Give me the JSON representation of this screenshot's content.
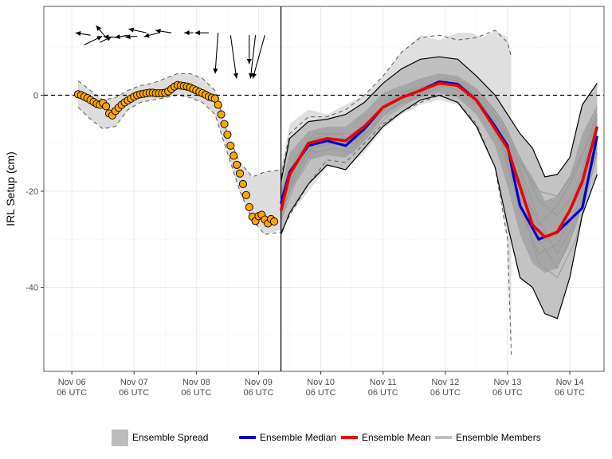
{
  "chart_data": {
    "type": "line",
    "title": "",
    "xlabel": "",
    "ylabel": "IRL Setup (cm)",
    "x_unit": "days since Nov 06 06 UTC",
    "xlim": [
      -0.45,
      8.55
    ],
    "ylim": [
      -57.5,
      18.5
    ],
    "grid": true,
    "zero_line": {
      "value": 0,
      "style": "dashed"
    },
    "forecast_start": 3.36,
    "x_ticks": [
      {
        "value": 0,
        "line1": "Nov 06",
        "line2": "06 UTC"
      },
      {
        "value": 1,
        "line1": "Nov 07",
        "line2": "06 UTC"
      },
      {
        "value": 2,
        "line1": "Nov 08",
        "line2": "06 UTC"
      },
      {
        "value": 3,
        "line1": "Nov 09",
        "line2": "06 UTC"
      },
      {
        "value": 4,
        "line1": "Nov 10",
        "line2": "06 UTC"
      },
      {
        "value": 5,
        "line1": "Nov 11",
        "line2": "06 UTC"
      },
      {
        "value": 6,
        "line1": "Nov 12",
        "line2": "06 UTC"
      },
      {
        "value": 7,
        "line1": "Nov 13",
        "line2": "06 UTC"
      },
      {
        "value": 8,
        "line1": "Nov 14",
        "line2": "06 UTC"
      }
    ],
    "y_ticks": [
      {
        "value": 0,
        "label": "0"
      },
      {
        "value": -20,
        "label": "-20"
      },
      {
        "value": -40,
        "label": "-40"
      }
    ],
    "colors": {
      "observed_fill": "#FFA500",
      "median": "#0000CC",
      "mean": "#EE0000",
      "members": "#9a9a9a",
      "spread": "#bdbdbd",
      "legend_spread": "#bdbdbd",
      "legend_members": "#bdbdbd"
    },
    "legend": {
      "position": "bottom",
      "items": [
        {
          "key": "spread",
          "label": "Ensemble Spread"
        },
        {
          "key": "median",
          "label": "Ensemble Median"
        },
        {
          "key": "mean",
          "label": "Ensemble Mean"
        },
        {
          "key": "members",
          "label": "Ensemble Members"
        }
      ]
    },
    "observed": {
      "x": [
        0.1,
        0.15,
        0.2,
        0.25,
        0.3,
        0.35,
        0.4,
        0.45,
        0.5,
        0.55,
        0.6,
        0.65,
        0.7,
        0.75,
        0.8,
        0.85,
        0.9,
        0.95,
        1.0,
        1.05,
        1.1,
        1.15,
        1.2,
        1.25,
        1.3,
        1.35,
        1.4,
        1.45,
        1.5,
        1.55,
        1.6,
        1.65,
        1.7,
        1.75,
        1.8,
        1.85,
        1.9,
        1.95,
        2.0,
        2.05,
        2.1,
        2.15,
        2.2,
        2.25,
        2.3,
        2.35,
        2.4,
        2.45,
        2.5,
        2.55,
        2.6,
        2.65,
        2.7,
        2.75,
        2.8,
        2.85,
        2.9,
        2.95,
        3.0,
        3.05,
        3.1,
        3.15,
        3.2,
        3.25
      ],
      "y": [
        0.2,
        0.0,
        -0.3,
        -0.6,
        -1.0,
        -1.4,
        -1.8,
        -2.0,
        -1.6,
        -2.3,
        -3.8,
        -4.2,
        -3.3,
        -2.6,
        -2.0,
        -1.5,
        -1.1,
        -0.7,
        -0.3,
        0.0,
        0.2,
        0.3,
        0.4,
        0.5,
        0.5,
        0.4,
        0.4,
        0.4,
        0.5,
        0.8,
        1.3,
        1.8,
        2.1,
        2.0,
        1.9,
        1.8,
        1.6,
        1.3,
        1.0,
        0.7,
        0.4,
        0.1,
        -0.3,
        -0.5,
        -0.7,
        -2.0,
        -4.0,
        -6.0,
        -8.2,
        -10.5,
        -12.6,
        -14.5,
        -16.3,
        -18.5,
        -20.8,
        -23.3,
        -25.3,
        -26.2,
        -25.2,
        -24.9,
        -25.9,
        -26.7,
        -25.8,
        -26.3
      ]
    },
    "median": {
      "x": [
        3.36,
        3.5,
        3.8,
        4.1,
        4.4,
        4.7,
        5.0,
        5.3,
        5.6,
        5.9,
        6.2,
        6.5,
        6.8,
        7.0,
        7.1,
        7.2,
        7.5,
        7.8,
        8.0,
        8.2,
        8.44
      ],
      "y": [
        -22.5,
        -16.0,
        -10.5,
        -9.5,
        -10.5,
        -7.0,
        -2.5,
        -0.5,
        1.0,
        2.8,
        2.3,
        -1.0,
        -6.5,
        -10.5,
        -17.0,
        -23.0,
        -30.0,
        -28.5,
        -26.0,
        -23.5,
        -8.5
      ]
    },
    "mean": {
      "x": [
        3.36,
        3.5,
        3.8,
        4.1,
        4.4,
        4.7,
        5.0,
        5.3,
        5.6,
        5.9,
        6.2,
        6.5,
        6.8,
        7.0,
        7.2,
        7.4,
        7.6,
        7.8,
        8.0,
        8.2,
        8.44
      ],
      "y": [
        -24.0,
        -16.5,
        -10.0,
        -9.0,
        -9.5,
        -6.5,
        -2.5,
        -0.5,
        1.0,
        2.5,
        2.0,
        -1.0,
        -7.0,
        -11.0,
        -19.0,
        -27.0,
        -29.5,
        -28.5,
        -24.0,
        -18.0,
        -6.5
      ]
    },
    "spread_min_max": {
      "x": [
        3.36,
        3.5,
        3.8,
        4.1,
        4.4,
        4.7,
        5.0,
        5.3,
        5.6,
        5.9,
        6.2,
        6.5,
        6.8,
        7.0,
        7.2,
        7.4,
        7.6,
        7.8,
        8.0,
        8.2,
        8.44
      ],
      "lower": [
        -29.0,
        -24.5,
        -18.5,
        -14.5,
        -15.5,
        -11.0,
        -6.5,
        -3.5,
        -1.0,
        0.0,
        -1.5,
        -6.5,
        -15.0,
        -27.0,
        -38.0,
        -40.0,
        -45.5,
        -46.5,
        -38.0,
        -25.0,
        -16.5
      ],
      "upper": [
        -18.0,
        -9.0,
        -5.5,
        -5.0,
        -4.0,
        -1.5,
        2.5,
        5.5,
        7.5,
        8.0,
        7.5,
        4.0,
        0.0,
        -4.0,
        -8.0,
        -11.0,
        -17.0,
        -16.5,
        -13.0,
        -2.0,
        2.5
      ]
    },
    "inner_band": {
      "x": [
        3.36,
        3.5,
        3.8,
        4.1,
        4.4,
        4.7,
        5.0,
        5.3,
        5.6,
        5.9,
        6.2,
        6.5,
        6.8,
        7.0,
        7.2,
        7.4,
        7.6,
        7.8,
        8.0,
        8.2,
        8.44
      ],
      "lower": [
        -26.5,
        -20.0,
        -13.5,
        -12.5,
        -13.0,
        -9.5,
        -4.5,
        -2.0,
        -0.5,
        0.5,
        -0.5,
        -4.0,
        -10.5,
        -19.0,
        -29.0,
        -35.0,
        -37.0,
        -36.0,
        -31.0,
        -22.0,
        -12.0
      ],
      "upper": [
        -20.0,
        -12.0,
        -7.5,
        -6.5,
        -6.5,
        -3.5,
        0.5,
        2.0,
        3.5,
        4.5,
        4.0,
        1.5,
        -3.0,
        -7.0,
        -13.0,
        -17.0,
        -22.0,
        -21.0,
        -17.0,
        -8.0,
        -2.0
      ]
    },
    "hindcast_spread": {
      "x": [
        0.1,
        0.3,
        0.5,
        0.7,
        0.9,
        1.1,
        1.3,
        1.5,
        1.7,
        1.9,
        2.1,
        2.3,
        2.5,
        2.7,
        2.9,
        3.1,
        3.36
      ],
      "lower": [
        -2.5,
        -5.0,
        -7.0,
        -6.5,
        -3.0,
        -1.5,
        -1.0,
        -0.5,
        0.0,
        -0.5,
        -1.5,
        -4.0,
        -12.0,
        -20.0,
        -26.0,
        -29.0,
        -28.0
      ],
      "upper": [
        3.0,
        1.0,
        -1.0,
        -0.5,
        1.0,
        2.0,
        2.5,
        3.5,
        4.5,
        4.5,
        3.5,
        1.0,
        -8.0,
        -14.0,
        -17.0,
        -16.0,
        -15.5
      ]
    },
    "light_spread": {
      "x": [
        3.36,
        3.5,
        3.8,
        4.1,
        4.4,
        4.7,
        5.0,
        5.3,
        5.6,
        5.9,
        6.2,
        6.4,
        6.6,
        6.8,
        7.0,
        7.06
      ],
      "lower": [
        -29.0,
        -25.0,
        -20.0,
        -15.0,
        -15.0,
        -12.0,
        -7.0,
        -4.0,
        -2.0,
        -1.0,
        -2.0,
        -4.0,
        -6.0,
        -15.0,
        -30.0,
        -54.0
      ],
      "upper": [
        -15.5,
        -6.0,
        -3.0,
        -4.0,
        -2.0,
        0.0,
        4.0,
        9.0,
        12.5,
        11.5,
        13.0,
        13.0,
        12.0,
        13.5,
        12.0,
        8.0
      ]
    },
    "dashed_lines": [
      {
        "x": [
          3.36,
          3.5,
          3.8,
          4.1,
          4.4,
          4.7,
          5.0,
          5.3,
          5.6,
          5.9,
          6.2,
          6.5,
          6.8,
          7.0,
          7.06
        ],
        "y": [
          -28.5,
          -25.0,
          -18.5,
          -13.5,
          -14.0,
          -10.0,
          -6.0,
          -3.5,
          -1.5,
          0.0,
          -1.5,
          -6.0,
          -15.0,
          -30.0,
          -54.0
        ]
      },
      {
        "x": [
          3.36,
          3.5,
          3.8,
          4.1,
          4.4,
          4.7,
          5.0,
          5.3,
          5.6,
          5.9,
          6.2,
          6.5,
          6.8,
          7.0,
          7.06
        ],
        "y": [
          -17.0,
          -8.0,
          -4.5,
          -4.5,
          -3.0,
          0.0,
          4.0,
          9.0,
          12.0,
          12.5,
          11.5,
          12.0,
          13.5,
          11.0,
          8.0
        ]
      },
      {
        "x": [
          0.1,
          0.3,
          0.5,
          0.7,
          0.9,
          1.1,
          1.3,
          1.5,
          1.7,
          1.9,
          2.1,
          2.3,
          2.5,
          2.7,
          2.9,
          3.1,
          3.36
        ],
        "y": [
          -2.5,
          -5.0,
          -7.0,
          -6.5,
          -3.0,
          -1.5,
          -1.0,
          -0.5,
          0.0,
          -0.5,
          -1.5,
          -4.0,
          -12.0,
          -20.0,
          -26.0,
          -29.0,
          -28.5
        ]
      },
      {
        "x": [
          0.1,
          0.3,
          0.5,
          0.7,
          0.9,
          1.1,
          1.3,
          1.5,
          1.7,
          1.9,
          2.1,
          2.3,
          2.5,
          2.7,
          2.9,
          3.1,
          3.36
        ],
        "y": [
          3.0,
          1.0,
          -1.0,
          -0.5,
          1.0,
          2.0,
          2.5,
          3.5,
          4.5,
          4.5,
          3.5,
          1.0,
          -8.0,
          -14.0,
          -17.0,
          -16.0,
          -15.5
        ]
      }
    ],
    "members": [
      {
        "x": [
          3.36,
          3.6,
          3.9,
          4.2,
          4.5,
          4.8,
          5.1,
          5.4,
          5.7,
          6.0,
          6.3,
          6.6,
          6.9,
          7.2,
          7.5,
          7.8,
          8.1,
          8.44
        ],
        "y": [
          -23,
          -14,
          -9,
          -9,
          -9,
          -6,
          -2,
          0,
          1.5,
          3,
          1,
          -3,
          -9,
          -22,
          -35,
          -38,
          -30,
          -12
        ]
      },
      {
        "x": [
          3.36,
          3.6,
          3.9,
          4.2,
          4.5,
          4.8,
          5.1,
          5.4,
          5.7,
          6.0,
          6.3,
          6.6,
          6.9,
          7.2,
          7.5,
          7.8,
          8.1,
          8.44
        ],
        "y": [
          -25,
          -17,
          -11,
          -10,
          -11,
          -7,
          -3,
          -1,
          1,
          2.5,
          1.5,
          -1,
          -6,
          -15,
          -26,
          -33,
          -26,
          -10
        ]
      },
      {
        "x": [
          3.36,
          3.6,
          3.9,
          4.2,
          4.5,
          4.8,
          5.1,
          5.4,
          5.7,
          6.0,
          6.3,
          6.6,
          6.9,
          7.2,
          7.5,
          7.8,
          8.1,
          8.44
        ],
        "y": [
          -21,
          -13,
          -8,
          -8,
          -8,
          -5,
          -1,
          0.5,
          2,
          3.5,
          2.5,
          0,
          -5,
          -13,
          -22,
          -25,
          -20,
          -5
        ]
      },
      {
        "x": [
          3.36,
          3.6,
          3.9,
          4.2,
          4.5,
          4.8,
          5.1,
          5.4,
          5.7,
          6.0,
          6.3,
          6.6,
          6.9,
          7.2,
          7.5,
          7.8,
          8.1,
          8.44
        ],
        "y": [
          -26,
          -18,
          -12,
          -11,
          -12,
          -8,
          -4,
          -1.5,
          0.5,
          2,
          0.5,
          -3,
          -9,
          -20,
          -31,
          -29,
          -22,
          -8
        ]
      },
      {
        "x": [
          3.36,
          3.6,
          3.9,
          4.2,
          4.5,
          4.8,
          5.1,
          5.4,
          5.7,
          6.0,
          6.3,
          6.6,
          6.9,
          7.2,
          7.5,
          7.8,
          8.1,
          8.44
        ],
        "y": [
          -24,
          -15,
          -10,
          -9,
          -10,
          -6,
          -2,
          0,
          1.5,
          3,
          2,
          -2,
          -8,
          -18,
          -27,
          -23,
          -16,
          -4
        ]
      },
      {
        "x": [
          3.36,
          3.6,
          3.9,
          4.2,
          4.5,
          4.8,
          5.1,
          5.4,
          5.7,
          6.0,
          6.3,
          6.6,
          6.9,
          7.2,
          7.5,
          7.8,
          8.1,
          8.44
        ],
        "y": [
          -22,
          -14,
          -9,
          -8,
          -9,
          -5,
          -1,
          1,
          2,
          3,
          1.5,
          -2,
          -7,
          -16,
          -30,
          -36,
          -27,
          -11
        ]
      },
      {
        "x": [
          3.36,
          3.6,
          3.9,
          4.2,
          4.5,
          4.8,
          5.1,
          5.4,
          5.7,
          6.0,
          6.3,
          6.6,
          6.9,
          7.2,
          7.5,
          7.8,
          8.1,
          8.44
        ],
        "y": [
          -25,
          -16,
          -10,
          -10,
          -10,
          -7,
          -3,
          -0.5,
          1,
          2.5,
          2,
          -1,
          -6,
          -14,
          -20,
          -21,
          -15,
          -6
        ]
      },
      {
        "x": [
          3.36,
          3.6,
          3.9,
          4.2,
          4.5,
          4.8,
          5.1,
          5.4,
          5.7,
          6.0,
          6.3,
          6.6,
          6.9,
          7.2,
          7.5,
          7.8,
          8.1,
          8.44
        ],
        "y": [
          -23,
          -15,
          -10,
          -9,
          -9,
          -6,
          -2,
          0,
          1.5,
          3,
          1,
          -3,
          -10,
          -24,
          -33,
          -31,
          -24,
          -9
        ]
      }
    ],
    "wind_arrows": [
      {
        "x": 0.2,
        "y": 10.5,
        "u": 1.8,
        "v": 1.8
      },
      {
        "x": 0.3,
        "y": 12.5,
        "u": -1.5,
        "v": 0.5
      },
      {
        "x": 0.45,
        "y": 11.0,
        "u": 1.2,
        "v": 1.2
      },
      {
        "x": 0.55,
        "y": 12.0,
        "u": -1.0,
        "v": 2.5
      },
      {
        "x": 0.75,
        "y": 12.0,
        "u": -1.5,
        "v": 0.2
      },
      {
        "x": 0.9,
        "y": 12.5,
        "u": -1.3,
        "v": -0.5
      },
      {
        "x": 1.05,
        "y": 12.3,
        "u": -1.2,
        "v": -0.2
      },
      {
        "x": 1.2,
        "y": 13.0,
        "u": -1.8,
        "v": 0.8
      },
      {
        "x": 1.4,
        "y": 13.0,
        "u": -1.5,
        "v": -0.8
      },
      {
        "x": 1.6,
        "y": 13.0,
        "u": -1.6,
        "v": 0.5
      },
      {
        "x": 1.95,
        "y": 13.0,
        "u": -0.9,
        "v": 0.0
      },
      {
        "x": 2.2,
        "y": 13.0,
        "u": -1.4,
        "v": 0.0
      },
      {
        "x": 2.35,
        "y": 13.0,
        "u": -0.3,
        "v": -8.5
      },
      {
        "x": 2.55,
        "y": 12.5,
        "u": 0.6,
        "v": -9.0
      },
      {
        "x": 2.85,
        "y": 12.5,
        "u": 0.0,
        "v": -6.0
      },
      {
        "x": 2.95,
        "y": 12.5,
        "u": -0.5,
        "v": -9.0
      },
      {
        "x": 3.1,
        "y": 12.5,
        "u": -1.2,
        "v": -9.0
      }
    ]
  }
}
